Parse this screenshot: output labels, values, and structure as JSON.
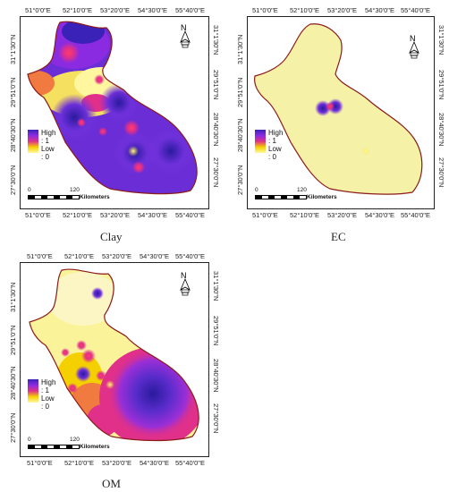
{
  "panels": [
    {
      "caption": "Clay",
      "x_ticks": [
        "51°0'0\"E",
        "52°10'0\"E",
        "53°20'0\"E",
        "54°30'0\"E",
        "55°40'0\"E"
      ],
      "y_ticks": [
        "31°1'30\"N",
        "29°51'0\"N",
        "28°40'30\"N",
        "27°30'0\"N"
      ],
      "legend": {
        "high": "High : 1",
        "low": "Low : 0"
      },
      "scale": {
        "zero": "0",
        "distance": "120",
        "units": "Kilometers"
      }
    },
    {
      "caption": "EC",
      "x_ticks": [
        "51°0'0\"E",
        "52°10'0\"E",
        "53°20'0\"E",
        "54°30'0\"E",
        "55°40'0\"E"
      ],
      "y_ticks": [
        "31°1'30\"N",
        "29°51'0\"N",
        "28°40'30\"N",
        "27°30'0\"N"
      ],
      "legend": {
        "high": "High : 1",
        "low": "Low : 0"
      },
      "scale": {
        "zero": "0",
        "distance": "120",
        "units": "Kilometers"
      }
    },
    {
      "caption": "OM",
      "x_ticks": [
        "51°0'0\"E",
        "52°10'0\"E",
        "53°20'0\"E",
        "54°30'0\"E",
        "55°40'0\"E"
      ],
      "y_ticks": [
        "31°1'30\"N",
        "29°51'0\"N",
        "28°40'30\"N",
        "27°30'0\"N"
      ],
      "legend": {
        "high": "High : 1",
        "low": "Low : 0"
      },
      "scale": {
        "zero": "0",
        "distance": "120",
        "units": "Kilometers"
      }
    }
  ],
  "colors": {
    "high": "#3a22b8",
    "mid_high": "#8a2be2",
    "mid": "#e0308a",
    "mid_low": "#f5d000",
    "low": "#fff9a0",
    "boundary": "#8b1a1a"
  }
}
